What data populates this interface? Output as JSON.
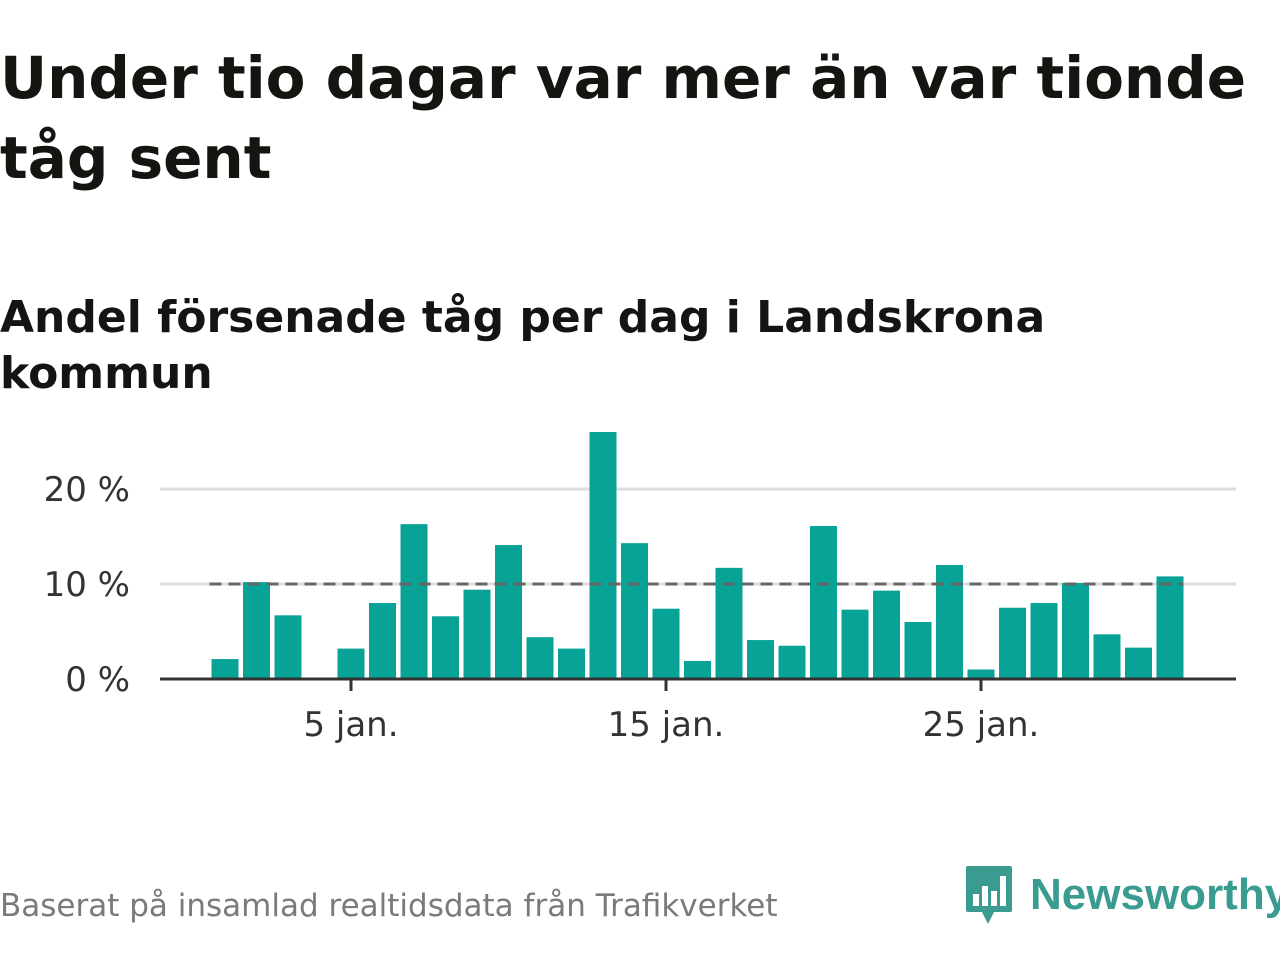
{
  "title": "Under tio dagar var mer än var tionde tåg sent",
  "subtitle": "Andel försenade tåg per dag i Landskrona kommun",
  "source": "Baserat på insamlad realtidsdata från Trafikverket",
  "brand": {
    "name": "Newsworthy",
    "icon": "newsworthy-logo-icon",
    "color": "#3a9c90"
  },
  "chart_data": {
    "type": "bar",
    "title": "Andel försenade tåg per dag i Landskrona kommun",
    "xlabel": "",
    "ylabel": "",
    "x": [
      "1 jan.",
      "2 jan.",
      "3 jan.",
      "4 jan.",
      "5 jan.",
      "6 jan.",
      "7 jan.",
      "8 jan.",
      "9 jan.",
      "10 jan.",
      "11 jan.",
      "12 jan.",
      "13 jan.",
      "14 jan.",
      "15 jan.",
      "16 jan.",
      "17 jan.",
      "18 jan.",
      "19 jan.",
      "20 jan.",
      "21 jan.",
      "22 jan.",
      "23 jan.",
      "24 jan.",
      "25 jan.",
      "26 jan.",
      "27 jan.",
      "28 jan.",
      "29 jan.",
      "30 jan.",
      "31 jan."
    ],
    "values": [
      2.1,
      10.2,
      6.7,
      null,
      3.2,
      8.0,
      16.3,
      6.6,
      9.4,
      14.1,
      4.4,
      3.2,
      26.0,
      14.3,
      7.4,
      1.9,
      11.7,
      4.1,
      3.5,
      16.1,
      7.3,
      9.3,
      6.0,
      12.0,
      1.0,
      7.5,
      8.0,
      10.1,
      4.7,
      3.3,
      10.8
    ],
    "x_tick_labels": [
      "5 jan.",
      "15 jan.",
      "25 jan."
    ],
    "x_tick_positions": [
      5,
      15,
      25
    ],
    "y_ticks": [
      0,
      10,
      20
    ],
    "y_tick_labels": [
      "0 %",
      "10 %",
      "20 %"
    ],
    "ylim": [
      0,
      26
    ],
    "reference_line": {
      "value": 10,
      "style": "dashed"
    },
    "grid": true,
    "legend": "none",
    "colors": {
      "bar": "#06a396",
      "reference": "#666666",
      "grid": "#dddddd",
      "axis": "#333333"
    }
  }
}
